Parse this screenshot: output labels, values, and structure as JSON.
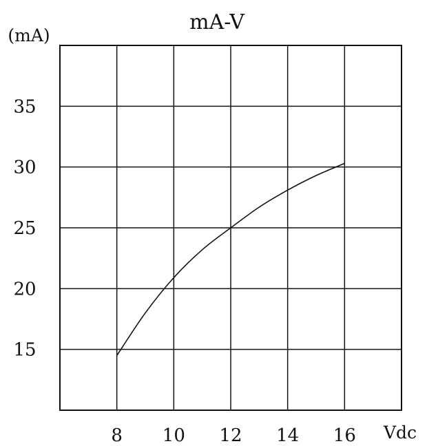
{
  "chart_data": {
    "type": "line",
    "title": "mA-V",
    "xlabel": "Vdc",
    "ylabel": "(mA)",
    "xlim": [
      6,
      18
    ],
    "ylim": [
      10,
      40
    ],
    "x_ticks": [
      8,
      10,
      12,
      14,
      16
    ],
    "y_ticks": [
      15,
      20,
      25,
      30,
      35
    ],
    "grid": true,
    "series": [
      {
        "x": [
          8,
          9,
          10,
          11,
          12,
          13,
          14,
          15,
          16
        ],
        "values": [
          14.5,
          18.0,
          20.9,
          23.2,
          25.0,
          26.7,
          28.1,
          29.3,
          30.3
        ]
      }
    ]
  },
  "colors": {
    "line": "#111111",
    "background": "#ffffff"
  }
}
